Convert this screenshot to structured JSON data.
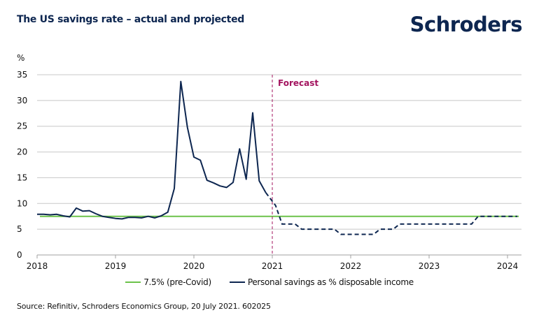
{
  "header": {
    "title": "The US savings rate – actual and projected",
    "logo": "Schroders"
  },
  "footer": {
    "source": "Source: Refinitiv, Schroders Economics Group, 20 July 2021. 602025"
  },
  "colors": {
    "actual_series": "#0d2650",
    "baseline": "#6cc24a",
    "forecast_marker": "#a3145f",
    "grid": "#c8c8c8"
  },
  "chart_data": {
    "type": "line",
    "title": "The US savings rate – actual and projected",
    "ylabel": "%",
    "xlabel": "",
    "ylim": [
      0,
      35
    ],
    "yticks": [
      0,
      5,
      10,
      15,
      20,
      25,
      30,
      35
    ],
    "xlim_years": [
      2018,
      2024.17
    ],
    "xticks": [
      "2018",
      "2019",
      "2020",
      "2021",
      "2022",
      "2023",
      "2024"
    ],
    "grid": true,
    "legend_position": "bottom",
    "annotations": [
      {
        "text": "Forecast",
        "at_year": 2021
      }
    ],
    "series": [
      {
        "name": "7.5% (pre-Covid)",
        "style": "solid",
        "constant_value": 7.5
      },
      {
        "name": "Personal savings as % disposable income",
        "actual": {
          "start": "2018-01",
          "frequency": "monthly",
          "values": [
            7.9,
            7.9,
            7.8,
            7.9,
            7.6,
            7.4,
            9.1,
            8.5,
            8.6,
            8.0,
            7.5,
            7.3,
            7.1,
            7.0,
            7.3,
            7.3,
            7.2,
            7.5,
            7.2,
            7.6,
            8.3,
            12.9,
            33.7,
            24.8,
            19.0,
            18.4,
            14.5,
            14.0,
            13.4,
            13.1,
            14.1,
            20.6,
            14.7,
            27.6,
            14.4,
            12.1
          ]
        },
        "forecast": {
          "points_month_index_from_2018_01": [
            [
              35,
              12.1
            ],
            [
              36.5,
              9.6
            ],
            [
              37.5,
              6.0
            ],
            [
              39.5,
              6.0
            ],
            [
              40.5,
              5.0
            ],
            [
              45.5,
              5.0
            ],
            [
              46.5,
              4.0
            ],
            [
              51.5,
              4.0
            ],
            [
              52.5,
              5.0
            ],
            [
              54.5,
              5.0
            ],
            [
              55.5,
              6.0
            ],
            [
              66.5,
              6.0
            ],
            [
              67.5,
              7.5
            ],
            [
              73.5,
              7.5
            ]
          ]
        }
      }
    ]
  }
}
